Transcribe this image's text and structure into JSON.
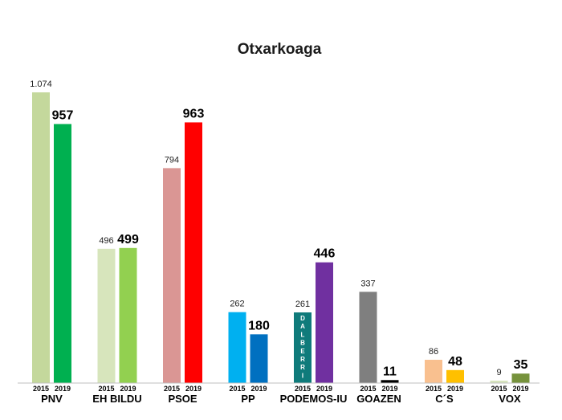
{
  "chart_data": {
    "type": "bar",
    "title": "Otxarkoaga",
    "categories": [
      "PNV",
      "EH BILDU",
      "PSOE",
      "PP",
      "PODEMOS-IU",
      "GOAZEN",
      "C´S",
      "VOX"
    ],
    "years": [
      "2015",
      "2019"
    ],
    "series": [
      {
        "name": "2015",
        "values": [
          1074,
          496,
          794,
          262,
          261,
          337,
          86,
          9
        ],
        "value_labels": [
          "1.074",
          "496",
          "794",
          "262",
          "261",
          "337",
          "86",
          "9"
        ],
        "colors": [
          "#c4d89c",
          "#d7e5bc",
          "#da9694",
          "#00b0f0",
          "#0f7b7b",
          "#7f7f7f",
          "#f9c08f",
          "#d7e4bd"
        ]
      },
      {
        "name": "2019",
        "values": [
          957,
          499,
          963,
          180,
          446,
          11,
          48,
          35
        ],
        "value_labels": [
          "957",
          "499",
          "963",
          "180",
          "446",
          "11",
          "48",
          "35"
        ],
        "colors": [
          "#00b050",
          "#92d050",
          "#ff0000",
          "#0070c0",
          "#7030a0",
          "#000000",
          "#ffc000",
          "#76923c"
        ]
      }
    ],
    "bar_text": [
      {
        "category": "PODEMOS-IU",
        "series": "2015",
        "text": "DALBERRI"
      }
    ],
    "grid": false,
    "legend": "none",
    "axis_color": "#bfbfbf"
  }
}
